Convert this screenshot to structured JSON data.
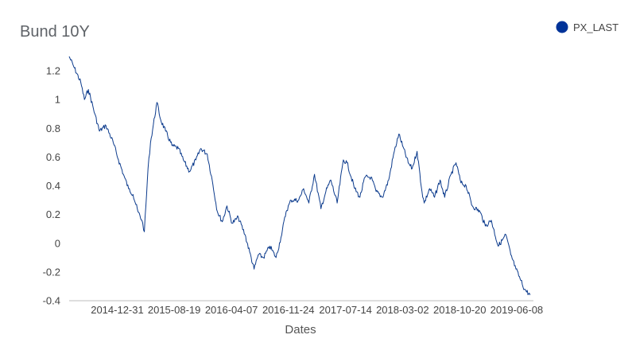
{
  "chart_data": {
    "type": "line",
    "title": "Bund 10Y",
    "xlabel": "Dates",
    "ylabel": "",
    "ylim": [
      -0.4,
      1.3
    ],
    "yticks": [
      -0.4,
      -0.2,
      0,
      0.2,
      0.4,
      0.6,
      0.8,
      1,
      1.2
    ],
    "ytick_labels": [
      "-0.4",
      "-0.2",
      "0",
      "0.2",
      "0.4",
      "0.6",
      "0.8",
      "1",
      "1.2"
    ],
    "xlim": [
      "2014-06-19",
      "2019-08-15"
    ],
    "xticks": [
      "2014-12-31",
      "2015-08-19",
      "2016-04-07",
      "2016-11-24",
      "2017-07-14",
      "2018-03-02",
      "2018-10-20",
      "2019-06-08"
    ],
    "grid": false,
    "legend": {
      "position": "top-right",
      "marker_color": "#003399"
    },
    "series": [
      {
        "name": "PX_LAST",
        "color": "#0b3a8c",
        "points": [
          [
            "2014-06-19",
            1.3
          ],
          [
            "2014-07-10",
            1.22
          ],
          [
            "2014-08-05",
            1.12
          ],
          [
            "2014-08-20",
            1.0
          ],
          [
            "2014-09-05",
            1.07
          ],
          [
            "2014-10-01",
            0.9
          ],
          [
            "2014-10-20",
            0.78
          ],
          [
            "2014-11-15",
            0.82
          ],
          [
            "2014-12-15",
            0.7
          ],
          [
            "2015-01-05",
            0.58
          ],
          [
            "2015-01-25",
            0.48
          ],
          [
            "2015-02-15",
            0.38
          ],
          [
            "2015-03-05",
            0.34
          ],
          [
            "2015-03-25",
            0.22
          ],
          [
            "2015-04-10",
            0.16
          ],
          [
            "2015-04-20",
            0.08
          ],
          [
            "2015-05-05",
            0.52
          ],
          [
            "2015-05-15",
            0.7
          ],
          [
            "2015-06-10",
            0.98
          ],
          [
            "2015-06-25",
            0.86
          ],
          [
            "2015-07-15",
            0.78
          ],
          [
            "2015-08-10",
            0.68
          ],
          [
            "2015-09-05",
            0.66
          ],
          [
            "2015-09-25",
            0.58
          ],
          [
            "2015-10-20",
            0.5
          ],
          [
            "2015-11-15",
            0.58
          ],
          [
            "2015-12-05",
            0.66
          ],
          [
            "2015-12-31",
            0.62
          ],
          [
            "2016-01-20",
            0.44
          ],
          [
            "2016-02-10",
            0.22
          ],
          [
            "2016-03-01",
            0.15
          ],
          [
            "2016-03-20",
            0.26
          ],
          [
            "2016-04-10",
            0.14
          ],
          [
            "2016-05-05",
            0.18
          ],
          [
            "2016-06-01",
            0.06
          ],
          [
            "2016-06-20",
            -0.06
          ],
          [
            "2016-07-08",
            -0.18
          ],
          [
            "2016-07-25",
            -0.08
          ],
          [
            "2016-08-15",
            -0.1
          ],
          [
            "2016-09-10",
            -0.02
          ],
          [
            "2016-10-05",
            -0.1
          ],
          [
            "2016-10-25",
            0.04
          ],
          [
            "2016-11-15",
            0.22
          ],
          [
            "2016-12-05",
            0.3
          ],
          [
            "2017-01-05",
            0.3
          ],
          [
            "2017-01-25",
            0.38
          ],
          [
            "2017-02-15",
            0.28
          ],
          [
            "2017-03-10",
            0.48
          ],
          [
            "2017-04-05",
            0.24
          ],
          [
            "2017-04-25",
            0.36
          ],
          [
            "2017-05-15",
            0.44
          ],
          [
            "2017-06-10",
            0.28
          ],
          [
            "2017-07-05",
            0.58
          ],
          [
            "2017-07-20",
            0.56
          ],
          [
            "2017-08-20",
            0.38
          ],
          [
            "2017-09-10",
            0.32
          ],
          [
            "2017-10-01",
            0.46
          ],
          [
            "2017-10-25",
            0.46
          ],
          [
            "2017-11-15",
            0.36
          ],
          [
            "2017-12-10",
            0.32
          ],
          [
            "2018-01-05",
            0.44
          ],
          [
            "2018-01-25",
            0.62
          ],
          [
            "2018-02-15",
            0.76
          ],
          [
            "2018-03-02",
            0.68
          ],
          [
            "2018-03-25",
            0.56
          ],
          [
            "2018-04-10",
            0.52
          ],
          [
            "2018-04-30",
            0.64
          ],
          [
            "2018-05-20",
            0.36
          ],
          [
            "2018-05-29",
            0.28
          ],
          [
            "2018-06-20",
            0.38
          ],
          [
            "2018-07-10",
            0.32
          ],
          [
            "2018-08-01",
            0.44
          ],
          [
            "2018-08-20",
            0.32
          ],
          [
            "2018-09-15",
            0.48
          ],
          [
            "2018-10-05",
            0.56
          ],
          [
            "2018-10-25",
            0.42
          ],
          [
            "2018-11-15",
            0.4
          ],
          [
            "2018-12-10",
            0.26
          ],
          [
            "2019-01-10",
            0.22
          ],
          [
            "2019-02-01",
            0.12
          ],
          [
            "2019-02-25",
            0.16
          ],
          [
            "2019-03-25",
            -0.02
          ],
          [
            "2019-04-10",
            0.02
          ],
          [
            "2019-04-25",
            0.06
          ],
          [
            "2019-05-15",
            -0.08
          ],
          [
            "2019-06-05",
            -0.18
          ],
          [
            "2019-06-25",
            -0.26
          ],
          [
            "2019-07-10",
            -0.32
          ],
          [
            "2019-08-01",
            -0.36
          ]
        ]
      }
    ]
  }
}
